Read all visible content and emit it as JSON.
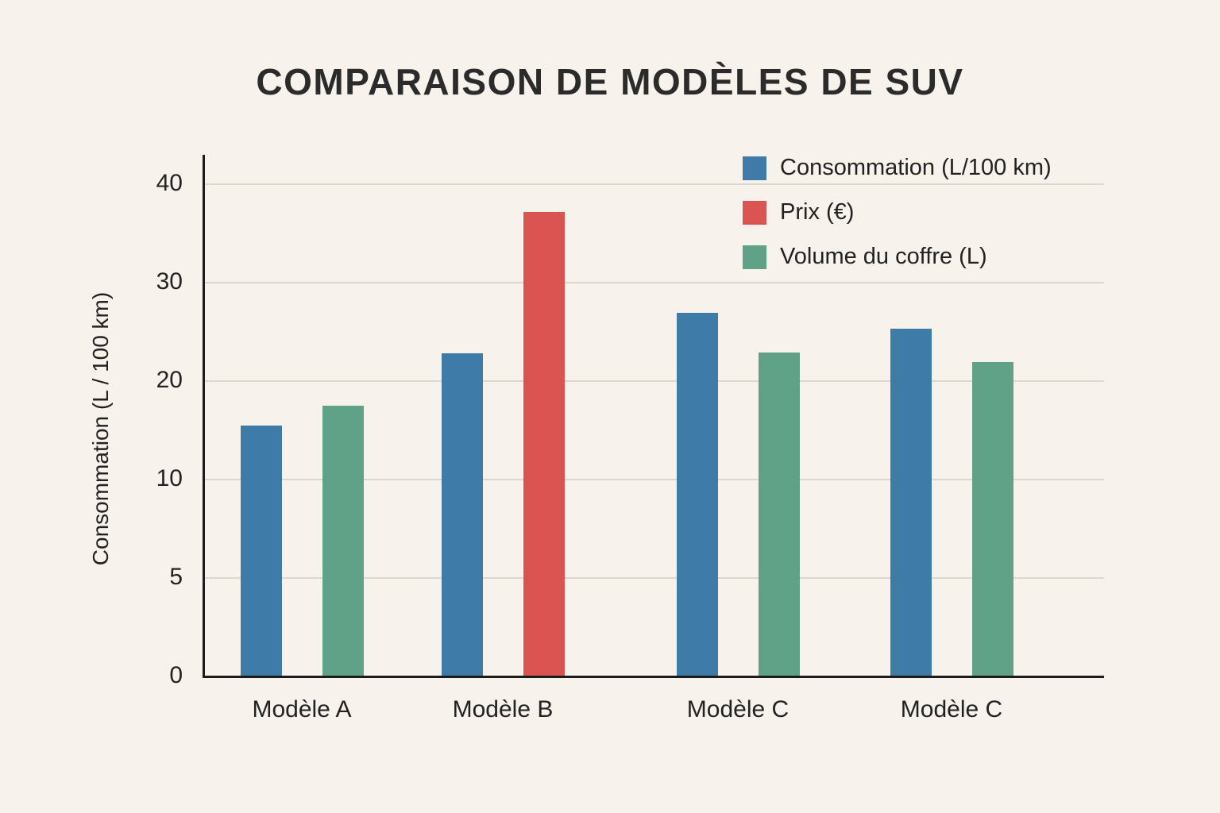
{
  "title": "COMPARAISON DE MODÈLES DE SUV",
  "chart_data": {
    "type": "bar",
    "title": "COMPARAISON DE MODÈLES DE SUV",
    "xlabel": "",
    "ylabel": "Consommation (L / 100 km)",
    "categories": [
      "Modèle A",
      "Modèle B",
      "Modèle C",
      "Modèle C"
    ],
    "yticks": [
      0,
      5,
      10,
      20,
      30,
      40
    ],
    "ytick_labels": [
      "0",
      "5",
      "10",
      "20",
      "30",
      "40"
    ],
    "ytick_spacing": "uniform",
    "ylim": [
      0,
      40
    ],
    "grid": true,
    "legend_position": "top-right",
    "series_colors": {
      "Consommation (L/100 km)": "#3E7CA7",
      "Prix (€)": "#D95450",
      "Volume du coffre (L)": "#5FA287"
    },
    "groups": [
      {
        "category": "Modèle A",
        "bars": [
          {
            "series": "Consommation (L/100 km)",
            "value": 15.5
          },
          {
            "series": "Volume du coffre (L)",
            "value": 17.5
          }
        ]
      },
      {
        "category": "Modèle B",
        "bars": [
          {
            "series": "Consommation (L/100 km)",
            "value": 22.8
          },
          {
            "series": "Prix (€)",
            "value": 37.2
          }
        ]
      },
      {
        "category": "Modèle C",
        "bars": [
          {
            "series": "Consommation (L/100 km)",
            "value": 26.9
          },
          {
            "series": "Volume du coffre (L)",
            "value": 22.9
          }
        ]
      },
      {
        "category": "Modèle C",
        "bars": [
          {
            "series": "Consommation (L/100 km)",
            "value": 25.3
          },
          {
            "series": "Volume du coffre (L)",
            "value": 21.9
          }
        ]
      }
    ],
    "legend": [
      {
        "label": "Consommation (L/100 km)",
        "color": "#3E7CA7"
      },
      {
        "label": "Prix (€)",
        "color": "#D95450"
      },
      {
        "label": "Volume du coffre (L)",
        "color": "#5FA287"
      }
    ],
    "colors": {
      "background": "#F7F3EC",
      "axis": "#1C1C1C",
      "gridline": "#DDD8CC",
      "text": "#282828"
    }
  }
}
